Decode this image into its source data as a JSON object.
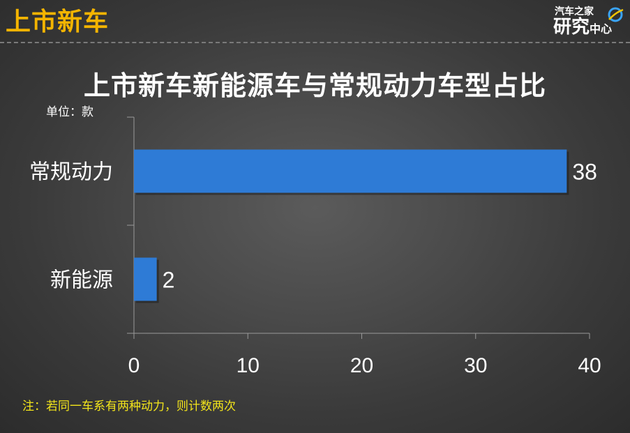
{
  "header": {
    "title": "上市新车"
  },
  "logo": {
    "line1": "汽车之家",
    "line2_big": "研究",
    "line2_small": "中心"
  },
  "chart_data": {
    "type": "bar",
    "orientation": "horizontal",
    "title": "上市新车新能源车与常规动力车型占比",
    "unit_label": "单位：款",
    "categories": [
      "常规动力",
      "新能源"
    ],
    "values": [
      38,
      2
    ],
    "data_labels": [
      "38",
      "2"
    ],
    "xlim": [
      0,
      40
    ],
    "x_ticks": [
      "0",
      "10",
      "20",
      "30",
      "40"
    ],
    "grid": false,
    "legend": "none",
    "bar_color": "#2e7bd6"
  },
  "note": "注：若同一车系有两种动力，则计数两次"
}
